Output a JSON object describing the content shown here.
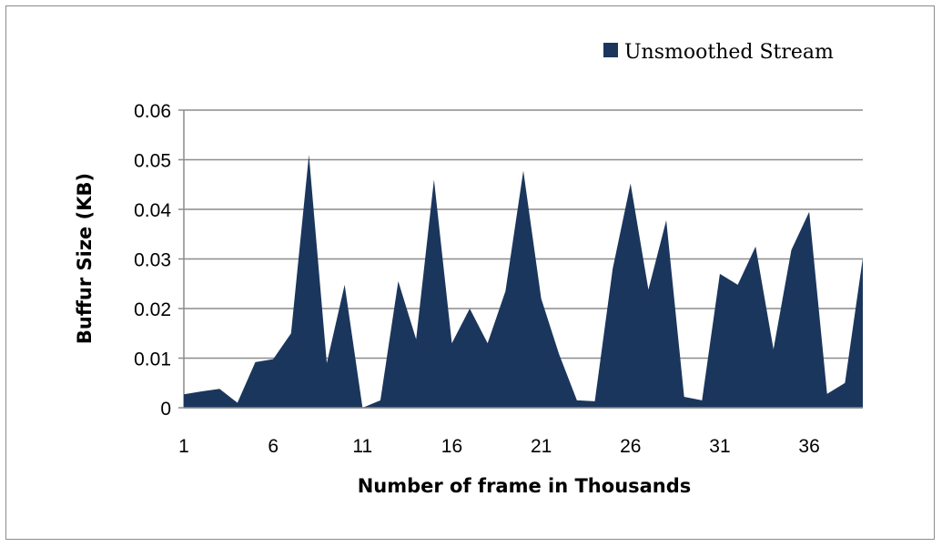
{
  "chart_data": {
    "type": "area",
    "xlabel": "Number of frame in Thousands",
    "ylabel": "Buffur Size (KB)",
    "ylim": [
      0,
      0.06
    ],
    "yticks": [
      "0",
      "0.01",
      "0.02",
      "0.03",
      "0.04",
      "0.05",
      "0.06"
    ],
    "x_tick_labels": [
      "1",
      "6",
      "11",
      "16",
      "21",
      "26",
      "31",
      "36"
    ],
    "grid": true,
    "legend_position": "top-right",
    "colors": {
      "series": "#1b365d",
      "grid": "#8c8c8c"
    },
    "series": [
      {
        "name": "Unsmoothed Stream",
        "x": [
          1,
          2,
          3,
          4,
          5,
          6,
          7,
          8,
          9,
          10,
          11,
          12,
          13,
          14,
          15,
          16,
          17,
          18,
          19,
          20,
          21,
          22,
          23,
          24,
          25,
          26,
          27,
          28,
          29,
          30,
          31,
          32,
          33,
          34,
          35,
          36,
          37,
          38,
          39
        ],
        "values": [
          0.0027,
          0.0033,
          0.0038,
          0.001,
          0.0092,
          0.0098,
          0.015,
          0.051,
          0.009,
          0.0248,
          0.0,
          0.0015,
          0.0255,
          0.0138,
          0.046,
          0.013,
          0.02,
          0.013,
          0.0235,
          0.0478,
          0.022,
          0.0108,
          0.0015,
          0.0013,
          0.028,
          0.0452,
          0.0238,
          0.0378,
          0.0022,
          0.0015,
          0.027,
          0.0248,
          0.0325,
          0.0118,
          0.0318,
          0.0395,
          0.0028,
          0.005,
          0.0302
        ]
      }
    ]
  }
}
